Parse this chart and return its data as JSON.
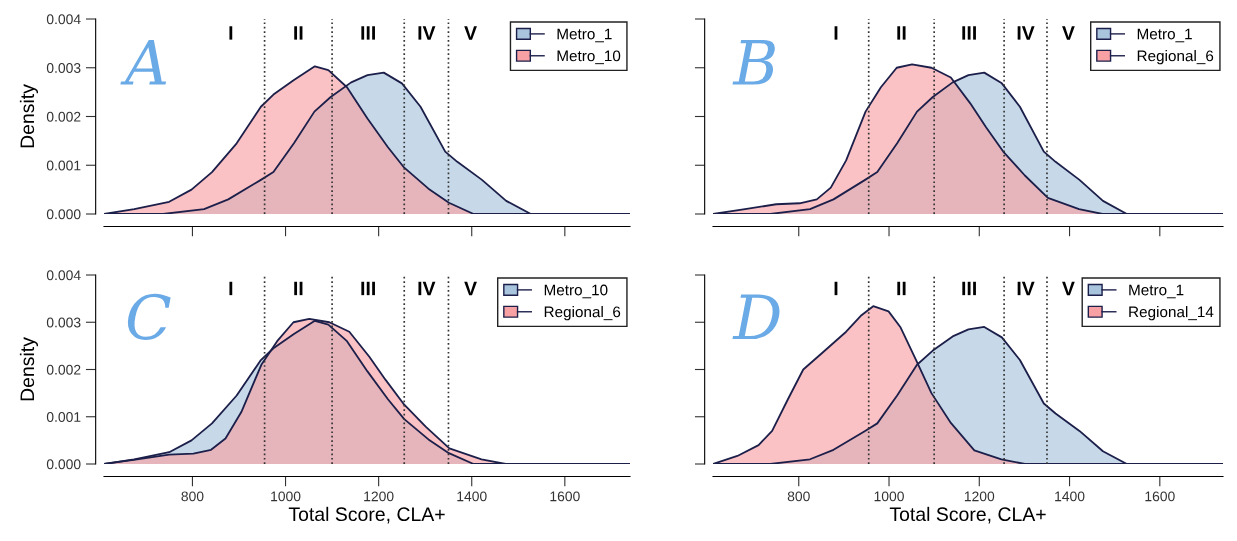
{
  "chart_data": [
    {
      "type": "area",
      "title": "A",
      "ylabel": "Density",
      "tick_labels": "y",
      "legend": "top right",
      "line_style": "solid",
      "xlim": [
        610,
        1740
      ],
      "xticks": [
        800,
        1000,
        1200,
        1400,
        1600
      ],
      "ylim": [
        0,
        0.004
      ],
      "yticks": [
        {
          "value": 0,
          "label": "0.000"
        },
        {
          "value": 0.001,
          "label": "0.001"
        },
        {
          "value": 0.002,
          "label": "0.002"
        },
        {
          "value": 0.003,
          "label": "0.003"
        },
        {
          "value": 0.004,
          "label": "0.004"
        }
      ],
      "series": [
        {
          "name": "Metro_1",
          "color": "#a9c4dd",
          "x": [
            610,
            737,
            825,
            877,
            947,
            974,
            1018,
            1062,
            1097,
            1141,
            1176,
            1211,
            1250,
            1290,
            1343,
            1369,
            1422,
            1474,
            1527,
            1571,
            1659,
            1740
          ],
          "values": [
            0,
            0,
            0.0001,
            0.0003,
            0.0007,
            0.00086,
            0.00145,
            0.0021,
            0.0024,
            0.0027,
            0.00285,
            0.0029,
            0.00268,
            0.0022,
            0.00128,
            0.00107,
            0.0007,
            0.00027,
            0,
            0,
            0,
            0
          ]
        },
        {
          "name": "Metro_10",
          "color": "#f7a1a5",
          "x": [
            610,
            675,
            750,
            798,
            842,
            895,
            947,
            974,
            1018,
            1063,
            1092,
            1132,
            1176,
            1220,
            1255,
            1307,
            1351,
            1404,
            1439,
            1740
          ],
          "values": [
            0,
            0.0001,
            0.00025,
            0.0005,
            0.00086,
            0.00145,
            0.0022,
            0.00245,
            0.00275,
            0.00303,
            0.00295,
            0.0026,
            0.00196,
            0.00137,
            0.00095,
            0.00052,
            0.00023,
            0,
            0,
            0
          ]
        }
      ],
      "ref_lines": [
        {
          "axis": "x",
          "value": 955,
          "line_style": "dotted",
          "color": "#333333"
        },
        {
          "axis": "x",
          "value": 1100,
          "line_style": "dotted",
          "color": "#333333"
        },
        {
          "axis": "x",
          "value": 1255,
          "line_style": "dotted",
          "color": "#333333"
        },
        {
          "axis": "x",
          "value": 1350,
          "line_style": "dotted",
          "color": "#333333"
        }
      ],
      "annotations": [
        "I",
        "II",
        "III",
        "IV",
        "V"
      ]
    },
    {
      "type": "area",
      "title": "B",
      "tick_labels": false,
      "legend": "top right",
      "line_style": "solid",
      "xlim": [
        610,
        1740
      ],
      "xticks": [
        800,
        1000,
        1200,
        1400,
        1600
      ],
      "ylim": [
        0,
        0.004
      ],
      "yticks": [
        {
          "value": 0,
          "label": null
        },
        {
          "value": 0.001,
          "label": null
        },
        {
          "value": 0.002,
          "label": null
        },
        {
          "value": 0.003,
          "label": null
        },
        {
          "value": 0.004,
          "label": null
        }
      ],
      "series": [
        {
          "name": "Metro_1",
          "color": "#a9c4dd",
          "x": [
            610,
            737,
            825,
            877,
            947,
            974,
            1018,
            1062,
            1097,
            1141,
            1176,
            1211,
            1250,
            1290,
            1343,
            1369,
            1422,
            1474,
            1527,
            1571,
            1659,
            1740
          ],
          "values": [
            0,
            0,
            0.0001,
            0.0003,
            0.0007,
            0.00086,
            0.00145,
            0.0021,
            0.0024,
            0.0027,
            0.00285,
            0.0029,
            0.00268,
            0.0022,
            0.00128,
            0.00107,
            0.0007,
            0.00027,
            0,
            0,
            0,
            0
          ]
        },
        {
          "name": "Regional_6",
          "color": "#f7a1a5",
          "x": [
            610,
            681,
            750,
            802,
            840,
            871,
            905,
            948,
            982,
            1017,
            1051,
            1094,
            1137,
            1180,
            1215,
            1253,
            1301,
            1352,
            1421,
            1473,
            1740
          ],
          "values": [
            0,
            0.0001,
            0.0002,
            0.00022,
            0.0003,
            0.00054,
            0.0011,
            0.0021,
            0.0026,
            0.003,
            0.00307,
            0.003,
            0.0028,
            0.00227,
            0.00178,
            0.00128,
            0.00079,
            0.00033,
            0.0001,
            0,
            0
          ]
        }
      ],
      "ref_lines": [
        {
          "axis": "x",
          "value": 955,
          "line_style": "dotted",
          "color": "#333333"
        },
        {
          "axis": "x",
          "value": 1100,
          "line_style": "dotted",
          "color": "#333333"
        },
        {
          "axis": "x",
          "value": 1255,
          "line_style": "dotted",
          "color": "#333333"
        },
        {
          "axis": "x",
          "value": 1350,
          "line_style": "dotted",
          "color": "#333333"
        }
      ],
      "annotations": [
        "I",
        "II",
        "III",
        "IV",
        "V"
      ]
    },
    {
      "type": "area",
      "title": "C",
      "ylabel": "Density",
      "xlabel": "Total Score, CLA+",
      "legend": "top right",
      "line_style": "solid",
      "xlim": [
        610,
        1740
      ],
      "xticks": [
        800,
        1000,
        1200,
        1400,
        1600
      ],
      "ylim": [
        0,
        0.004
      ],
      "yticks": [
        {
          "value": 0,
          "label": "0.000"
        },
        {
          "value": 0.001,
          "label": "0.001"
        },
        {
          "value": 0.002,
          "label": "0.002"
        },
        {
          "value": 0.003,
          "label": "0.003"
        },
        {
          "value": 0.004,
          "label": "0.004"
        }
      ],
      "series": [
        {
          "name": "Metro_10",
          "color": "#a9c4dd",
          "x": [
            610,
            675,
            750,
            798,
            842,
            895,
            947,
            974,
            1018,
            1063,
            1092,
            1132,
            1176,
            1220,
            1255,
            1307,
            1351,
            1404,
            1439,
            1740
          ],
          "values": [
            0,
            0.0001,
            0.00025,
            0.0005,
            0.00086,
            0.00145,
            0.0022,
            0.00245,
            0.00275,
            0.00303,
            0.00295,
            0.0026,
            0.00196,
            0.00137,
            0.00095,
            0.00052,
            0.00023,
            0,
            0,
            0
          ]
        },
        {
          "name": "Regional_6",
          "color": "#f7a1a5",
          "x": [
            610,
            681,
            750,
            802,
            840,
            871,
            905,
            948,
            982,
            1017,
            1051,
            1094,
            1137,
            1180,
            1215,
            1253,
            1301,
            1352,
            1421,
            1473,
            1740
          ],
          "values": [
            0,
            0.0001,
            0.0002,
            0.00022,
            0.0003,
            0.00054,
            0.0011,
            0.0021,
            0.0026,
            0.003,
            0.00307,
            0.003,
            0.0028,
            0.00227,
            0.00178,
            0.00128,
            0.00079,
            0.00033,
            0.0001,
            0,
            0
          ]
        }
      ],
      "ref_lines": [
        {
          "axis": "x",
          "value": 955,
          "line_style": "dotted",
          "color": "#333333"
        },
        {
          "axis": "x",
          "value": 1100,
          "line_style": "dotted",
          "color": "#333333"
        },
        {
          "axis": "x",
          "value": 1255,
          "line_style": "dotted",
          "color": "#333333"
        },
        {
          "axis": "x",
          "value": 1350,
          "line_style": "dotted",
          "color": "#333333"
        }
      ],
      "annotations": [
        "I",
        "II",
        "III",
        "IV",
        "V"
      ]
    },
    {
      "type": "area",
      "title": "D",
      "xlabel": "Total Score, CLA+",
      "tick_labels": "x",
      "legend": "top right",
      "line_style": "solid",
      "xlim": [
        610,
        1740
      ],
      "xticks": [
        800,
        1000,
        1200,
        1400,
        1600
      ],
      "ylim": [
        0,
        0.004
      ],
      "yticks": [
        {
          "value": 0,
          "label": null
        },
        {
          "value": 0.001,
          "label": null
        },
        {
          "value": 0.002,
          "label": null
        },
        {
          "value": 0.003,
          "label": null
        },
        {
          "value": 0.004,
          "label": null
        }
      ],
      "series": [
        {
          "name": "Metro_1",
          "color": "#a9c4dd",
          "x": [
            610,
            737,
            825,
            877,
            947,
            974,
            1018,
            1062,
            1097,
            1141,
            1176,
            1211,
            1250,
            1290,
            1343,
            1369,
            1422,
            1474,
            1527,
            1571,
            1659,
            1740
          ],
          "values": [
            0,
            0,
            0.0001,
            0.0003,
            0.0007,
            0.00086,
            0.00145,
            0.0021,
            0.0024,
            0.0027,
            0.00285,
            0.0029,
            0.00268,
            0.0022,
            0.00128,
            0.00107,
            0.0007,
            0.00027,
            0,
            0,
            0,
            0
          ]
        },
        {
          "name": "Regional_14",
          "color": "#f7a1a5",
          "x": [
            610,
            664,
            711,
            741,
            776,
            810,
            853,
            905,
            939,
            965,
            999,
            1025,
            1060,
            1094,
            1137,
            1189,
            1249,
            1301,
            1740
          ],
          "values": [
            0,
            0.00017,
            0.0004,
            0.0007,
            0.00137,
            0.002,
            0.00236,
            0.0028,
            0.00315,
            0.00334,
            0.00323,
            0.0029,
            0.0022,
            0.0015,
            0.00087,
            0.00029,
            0.0001,
            0,
            0
          ]
        }
      ],
      "ref_lines": [
        {
          "axis": "x",
          "value": 955,
          "line_style": "dotted",
          "color": "#333333"
        },
        {
          "axis": "x",
          "value": 1100,
          "line_style": "dotted",
          "color": "#333333"
        },
        {
          "axis": "x",
          "value": 1255,
          "line_style": "dotted",
          "color": "#333333"
        },
        {
          "axis": "x",
          "value": 1350,
          "line_style": "dotted",
          "color": "#333333"
        }
      ],
      "annotations": [
        "I",
        "II",
        "III",
        "IV",
        "V"
      ]
    }
  ]
}
